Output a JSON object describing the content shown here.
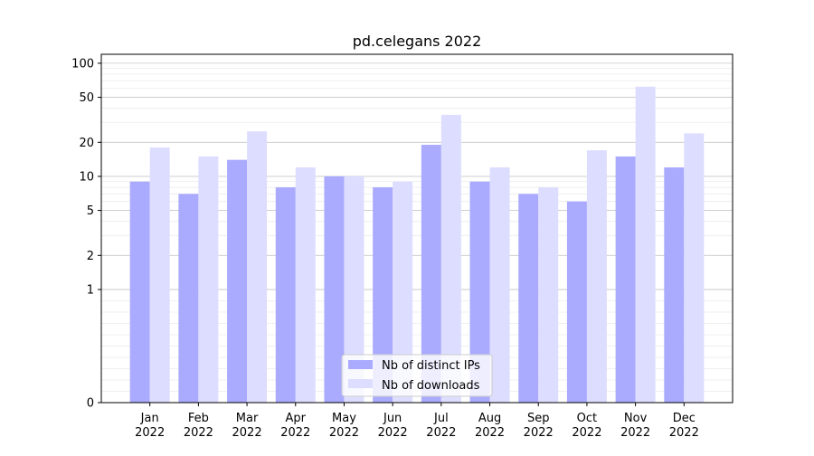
{
  "chart_data": {
    "type": "bar",
    "title": "pd.celegans 2022",
    "xlabel": "",
    "ylabel": "",
    "yscale": "symlog",
    "ylim": [
      0,
      120
    ],
    "yticks": [
      0,
      1,
      2,
      5,
      10,
      20,
      50,
      100
    ],
    "ytick_labels": [
      "0",
      "1",
      "2",
      "5",
      "10",
      "20",
      "50",
      "100"
    ],
    "grid": true,
    "legend_position": "bottom-center",
    "categories": [
      [
        "Jan",
        "2022"
      ],
      [
        "Feb",
        "2022"
      ],
      [
        "Mar",
        "2022"
      ],
      [
        "Apr",
        "2022"
      ],
      [
        "May",
        "2022"
      ],
      [
        "Jun",
        "2022"
      ],
      [
        "Jul",
        "2022"
      ],
      [
        "Aug",
        "2022"
      ],
      [
        "Sep",
        "2022"
      ],
      [
        "Oct",
        "2022"
      ],
      [
        "Nov",
        "2022"
      ],
      [
        "Dec",
        "2022"
      ]
    ],
    "series": [
      {
        "name": "Nb of distinct IPs",
        "color": "#aaaaff",
        "values": [
          9,
          7,
          14,
          8,
          10,
          8,
          19,
          9,
          7,
          6,
          15,
          12
        ]
      },
      {
        "name": "Nb of downloads",
        "color": "#ddddff",
        "values": [
          18,
          15,
          25,
          12,
          10,
          9,
          35,
          12,
          8,
          17,
          62,
          24
        ]
      }
    ]
  }
}
